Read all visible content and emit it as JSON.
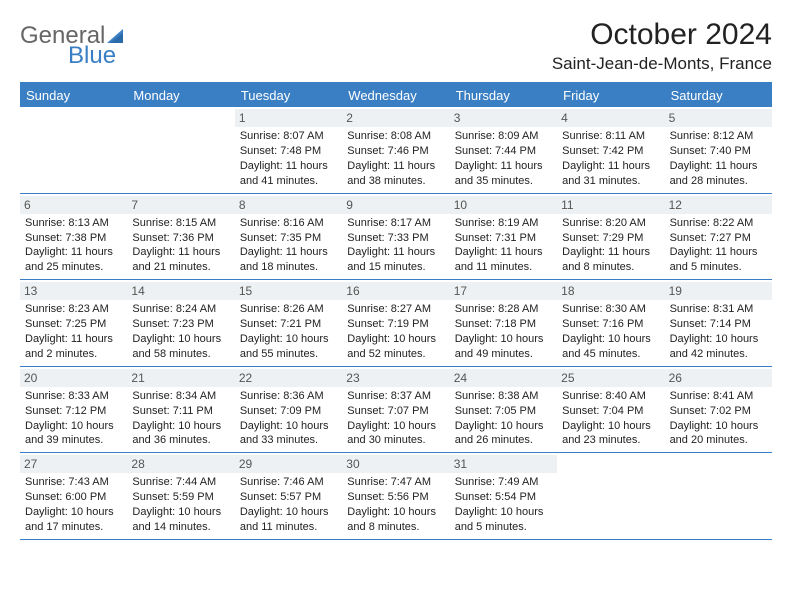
{
  "logo": {
    "part1": "General",
    "part2": "Blue"
  },
  "title": "October 2024",
  "location": "Saint-Jean-de-Monts, France",
  "colors": {
    "accent": "#3a7fc4",
    "daynum_bg": "#eef1f3",
    "text": "#222222",
    "logo_gray": "#666666"
  },
  "dayNames": [
    "Sunday",
    "Monday",
    "Tuesday",
    "Wednesday",
    "Thursday",
    "Friday",
    "Saturday"
  ],
  "weeks": [
    [
      null,
      null,
      {
        "n": "1",
        "sunrise": "8:07 AM",
        "sunset": "7:48 PM",
        "daylight": "11 hours and 41 minutes."
      },
      {
        "n": "2",
        "sunrise": "8:08 AM",
        "sunset": "7:46 PM",
        "daylight": "11 hours and 38 minutes."
      },
      {
        "n": "3",
        "sunrise": "8:09 AM",
        "sunset": "7:44 PM",
        "daylight": "11 hours and 35 minutes."
      },
      {
        "n": "4",
        "sunrise": "8:11 AM",
        "sunset": "7:42 PM",
        "daylight": "11 hours and 31 minutes."
      },
      {
        "n": "5",
        "sunrise": "8:12 AM",
        "sunset": "7:40 PM",
        "daylight": "11 hours and 28 minutes."
      }
    ],
    [
      {
        "n": "6",
        "sunrise": "8:13 AM",
        "sunset": "7:38 PM",
        "daylight": "11 hours and 25 minutes."
      },
      {
        "n": "7",
        "sunrise": "8:15 AM",
        "sunset": "7:36 PM",
        "daylight": "11 hours and 21 minutes."
      },
      {
        "n": "8",
        "sunrise": "8:16 AM",
        "sunset": "7:35 PM",
        "daylight": "11 hours and 18 minutes."
      },
      {
        "n": "9",
        "sunrise": "8:17 AM",
        "sunset": "7:33 PM",
        "daylight": "11 hours and 15 minutes."
      },
      {
        "n": "10",
        "sunrise": "8:19 AM",
        "sunset": "7:31 PM",
        "daylight": "11 hours and 11 minutes."
      },
      {
        "n": "11",
        "sunrise": "8:20 AM",
        "sunset": "7:29 PM",
        "daylight": "11 hours and 8 minutes."
      },
      {
        "n": "12",
        "sunrise": "8:22 AM",
        "sunset": "7:27 PM",
        "daylight": "11 hours and 5 minutes."
      }
    ],
    [
      {
        "n": "13",
        "sunrise": "8:23 AM",
        "sunset": "7:25 PM",
        "daylight": "11 hours and 2 minutes."
      },
      {
        "n": "14",
        "sunrise": "8:24 AM",
        "sunset": "7:23 PM",
        "daylight": "10 hours and 58 minutes."
      },
      {
        "n": "15",
        "sunrise": "8:26 AM",
        "sunset": "7:21 PM",
        "daylight": "10 hours and 55 minutes."
      },
      {
        "n": "16",
        "sunrise": "8:27 AM",
        "sunset": "7:19 PM",
        "daylight": "10 hours and 52 minutes."
      },
      {
        "n": "17",
        "sunrise": "8:28 AM",
        "sunset": "7:18 PM",
        "daylight": "10 hours and 49 minutes."
      },
      {
        "n": "18",
        "sunrise": "8:30 AM",
        "sunset": "7:16 PM",
        "daylight": "10 hours and 45 minutes."
      },
      {
        "n": "19",
        "sunrise": "8:31 AM",
        "sunset": "7:14 PM",
        "daylight": "10 hours and 42 minutes."
      }
    ],
    [
      {
        "n": "20",
        "sunrise": "8:33 AM",
        "sunset": "7:12 PM",
        "daylight": "10 hours and 39 minutes."
      },
      {
        "n": "21",
        "sunrise": "8:34 AM",
        "sunset": "7:11 PM",
        "daylight": "10 hours and 36 minutes."
      },
      {
        "n": "22",
        "sunrise": "8:36 AM",
        "sunset": "7:09 PM",
        "daylight": "10 hours and 33 minutes."
      },
      {
        "n": "23",
        "sunrise": "8:37 AM",
        "sunset": "7:07 PM",
        "daylight": "10 hours and 30 minutes."
      },
      {
        "n": "24",
        "sunrise": "8:38 AM",
        "sunset": "7:05 PM",
        "daylight": "10 hours and 26 minutes."
      },
      {
        "n": "25",
        "sunrise": "8:40 AM",
        "sunset": "7:04 PM",
        "daylight": "10 hours and 23 minutes."
      },
      {
        "n": "26",
        "sunrise": "8:41 AM",
        "sunset": "7:02 PM",
        "daylight": "10 hours and 20 minutes."
      }
    ],
    [
      {
        "n": "27",
        "sunrise": "7:43 AM",
        "sunset": "6:00 PM",
        "daylight": "10 hours and 17 minutes."
      },
      {
        "n": "28",
        "sunrise": "7:44 AM",
        "sunset": "5:59 PM",
        "daylight": "10 hours and 14 minutes."
      },
      {
        "n": "29",
        "sunrise": "7:46 AM",
        "sunset": "5:57 PM",
        "daylight": "10 hours and 11 minutes."
      },
      {
        "n": "30",
        "sunrise": "7:47 AM",
        "sunset": "5:56 PM",
        "daylight": "10 hours and 8 minutes."
      },
      {
        "n": "31",
        "sunrise": "7:49 AM",
        "sunset": "5:54 PM",
        "daylight": "10 hours and 5 minutes."
      },
      null,
      null
    ]
  ],
  "labels": {
    "sunrise": "Sunrise:",
    "sunset": "Sunset:",
    "daylight": "Daylight:"
  }
}
